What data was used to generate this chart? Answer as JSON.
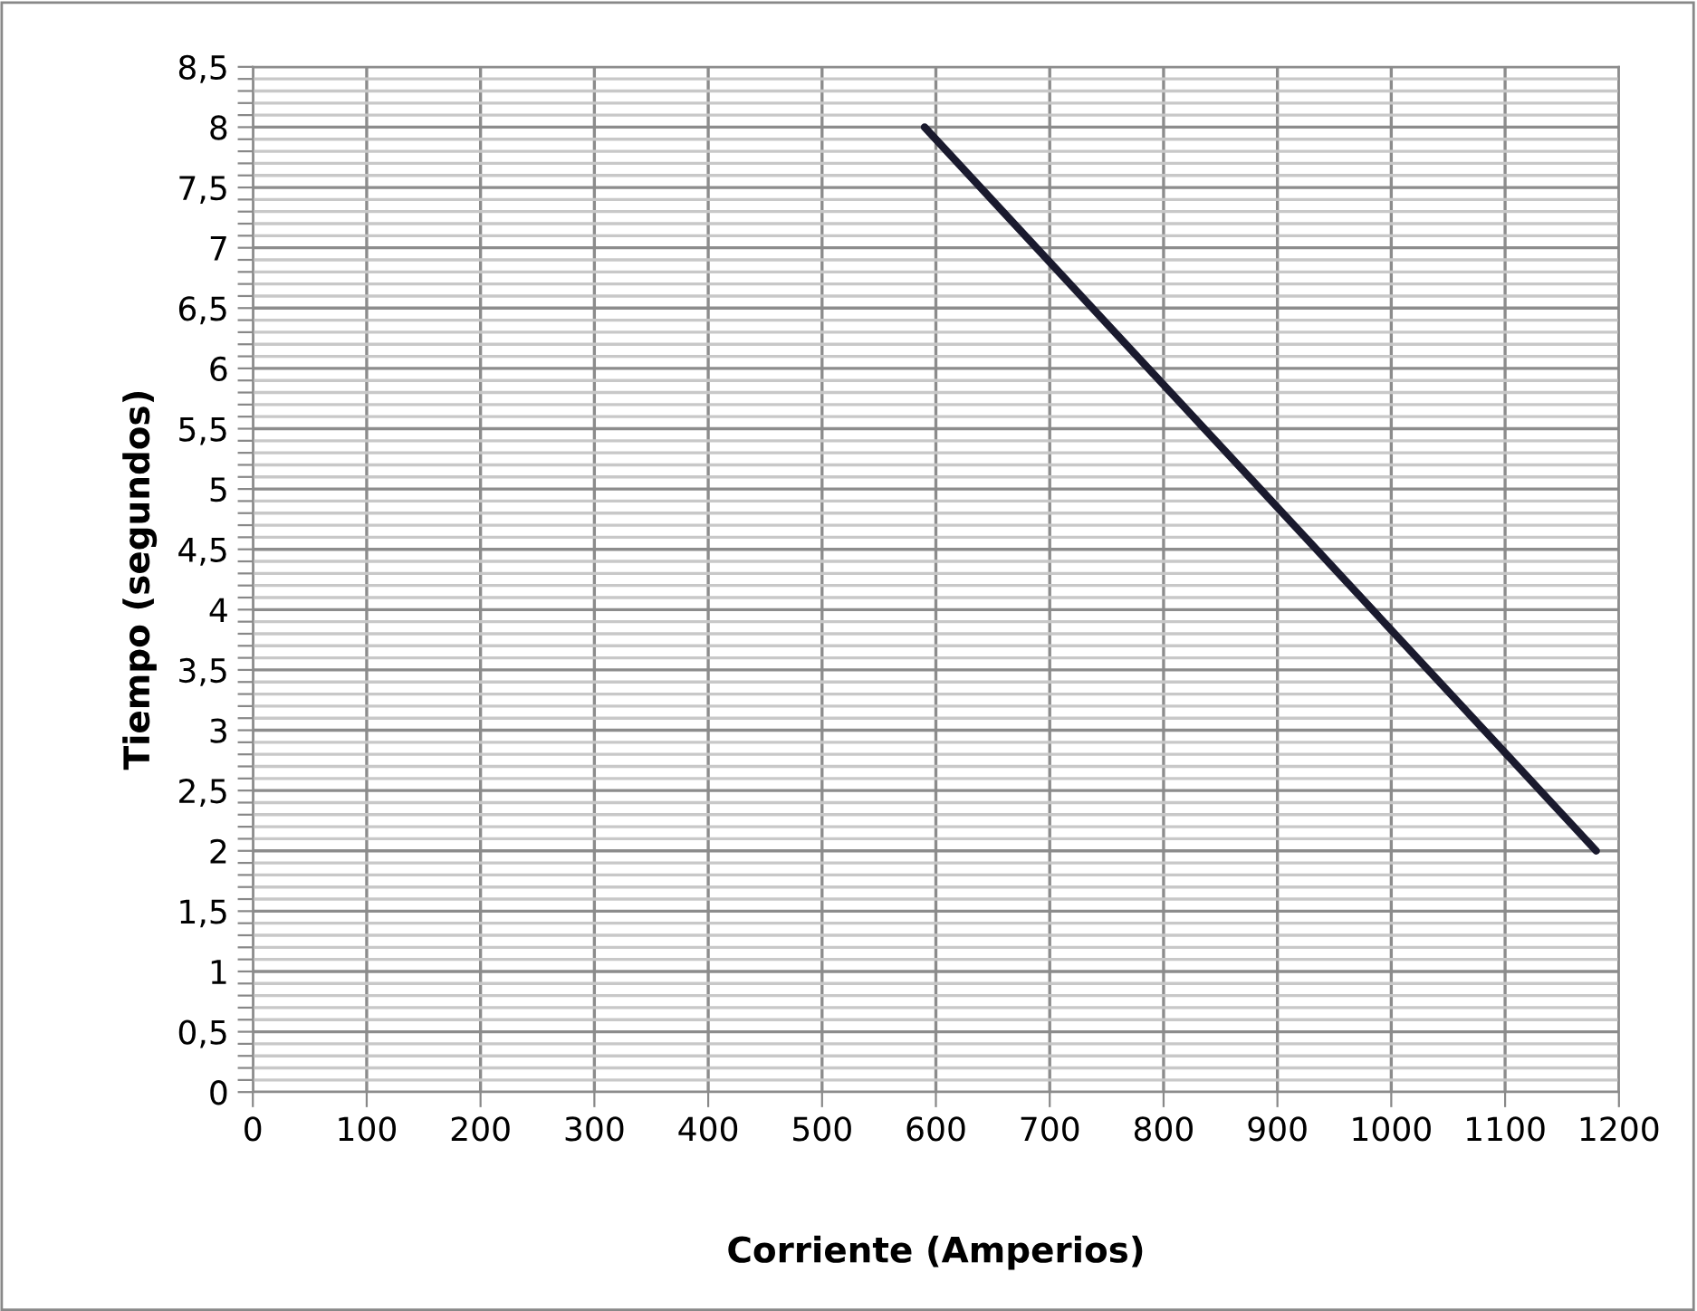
{
  "chart_data": {
    "type": "line",
    "xlabel": "Corriente (Amperios)",
    "ylabel": "Tiempo (segundos)",
    "x": [
      590,
      1180
    ],
    "series": [
      {
        "color": "#1a1a2e",
        "values": [
          8,
          2
        ]
      }
    ],
    "xlim": [
      0,
      1200
    ],
    "xticks": [
      0,
      100,
      200,
      300,
      400,
      500,
      600,
      700,
      800,
      900,
      1000,
      1100,
      1200
    ],
    "ylim": [
      0,
      8.5
    ],
    "yticks": [
      {
        "value": 0,
        "label": "0"
      },
      {
        "value": 0.1,
        "label": null
      },
      {
        "value": 0.2,
        "label": null
      },
      {
        "value": 0.3,
        "label": null
      },
      {
        "value": 0.4,
        "label": null
      },
      {
        "value": 0.5,
        "label": "0,5"
      },
      {
        "value": 0.6,
        "label": null
      },
      {
        "value": 0.7,
        "label": null
      },
      {
        "value": 0.8,
        "label": null
      },
      {
        "value": 0.9,
        "label": null
      },
      {
        "value": 1,
        "label": "1"
      },
      {
        "value": 1.1,
        "label": null
      },
      {
        "value": 1.2,
        "label": null
      },
      {
        "value": 1.3,
        "label": null
      },
      {
        "value": 1.4,
        "label": null
      },
      {
        "value": 1.5,
        "label": "1,5"
      },
      {
        "value": 1.6,
        "label": null
      },
      {
        "value": 1.7,
        "label": null
      },
      {
        "value": 1.8,
        "label": null
      },
      {
        "value": 1.9,
        "label": null
      },
      {
        "value": 2,
        "label": "2"
      },
      {
        "value": 2.1,
        "label": null
      },
      {
        "value": 2.2,
        "label": null
      },
      {
        "value": 2.3,
        "label": null
      },
      {
        "value": 2.4,
        "label": null
      },
      {
        "value": 2.5,
        "label": "2,5"
      },
      {
        "value": 2.6,
        "label": null
      },
      {
        "value": 2.7,
        "label": null
      },
      {
        "value": 2.8,
        "label": null
      },
      {
        "value": 2.9,
        "label": null
      },
      {
        "value": 3,
        "label": "3"
      },
      {
        "value": 3.1,
        "label": null
      },
      {
        "value": 3.2,
        "label": null
      },
      {
        "value": 3.3,
        "label": null
      },
      {
        "value": 3.4,
        "label": null
      },
      {
        "value": 3.5,
        "label": "3,5"
      },
      {
        "value": 3.6,
        "label": null
      },
      {
        "value": 3.7,
        "label": null
      },
      {
        "value": 3.8,
        "label": null
      },
      {
        "value": 3.9,
        "label": null
      },
      {
        "value": 4,
        "label": "4"
      },
      {
        "value": 4.1,
        "label": null
      },
      {
        "value": 4.2,
        "label": null
      },
      {
        "value": 4.3,
        "label": null
      },
      {
        "value": 4.4,
        "label": null
      },
      {
        "value": 4.5,
        "label": "4,5"
      },
      {
        "value": 4.6,
        "label": null
      },
      {
        "value": 4.7,
        "label": null
      },
      {
        "value": 4.8,
        "label": null
      },
      {
        "value": 4.9,
        "label": null
      },
      {
        "value": 5,
        "label": "5"
      },
      {
        "value": 5.1,
        "label": null
      },
      {
        "value": 5.2,
        "label": null
      },
      {
        "value": 5.3,
        "label": null
      },
      {
        "value": 5.4,
        "label": null
      },
      {
        "value": 5.5,
        "label": "5,5"
      },
      {
        "value": 5.6,
        "label": null
      },
      {
        "value": 5.7,
        "label": null
      },
      {
        "value": 5.8,
        "label": null
      },
      {
        "value": 5.9,
        "label": null
      },
      {
        "value": 6,
        "label": "6"
      },
      {
        "value": 6.1,
        "label": null
      },
      {
        "value": 6.2,
        "label": null
      },
      {
        "value": 6.3,
        "label": null
      },
      {
        "value": 6.4,
        "label": null
      },
      {
        "value": 6.5,
        "label": "6,5"
      },
      {
        "value": 6.6,
        "label": null
      },
      {
        "value": 6.7,
        "label": null
      },
      {
        "value": 6.8,
        "label": null
      },
      {
        "value": 6.9,
        "label": null
      },
      {
        "value": 7,
        "label": "7"
      },
      {
        "value": 7.1,
        "label": null
      },
      {
        "value": 7.2,
        "label": null
      },
      {
        "value": 7.3,
        "label": null
      },
      {
        "value": 7.4,
        "label": null
      },
      {
        "value": 7.5,
        "label": "7,5"
      },
      {
        "value": 7.6,
        "label": null
      },
      {
        "value": 7.7,
        "label": null
      },
      {
        "value": 7.8,
        "label": null
      },
      {
        "value": 7.9,
        "label": null
      },
      {
        "value": 8,
        "label": "8"
      },
      {
        "value": 8.1,
        "label": null
      },
      {
        "value": 8.2,
        "label": null
      },
      {
        "value": 8.3,
        "label": null
      },
      {
        "value": 8.4,
        "label": null
      },
      {
        "value": 8.5,
        "label": "8,5"
      }
    ],
    "grid": true,
    "legend": false,
    "marker": "none",
    "line_style": "solid"
  }
}
